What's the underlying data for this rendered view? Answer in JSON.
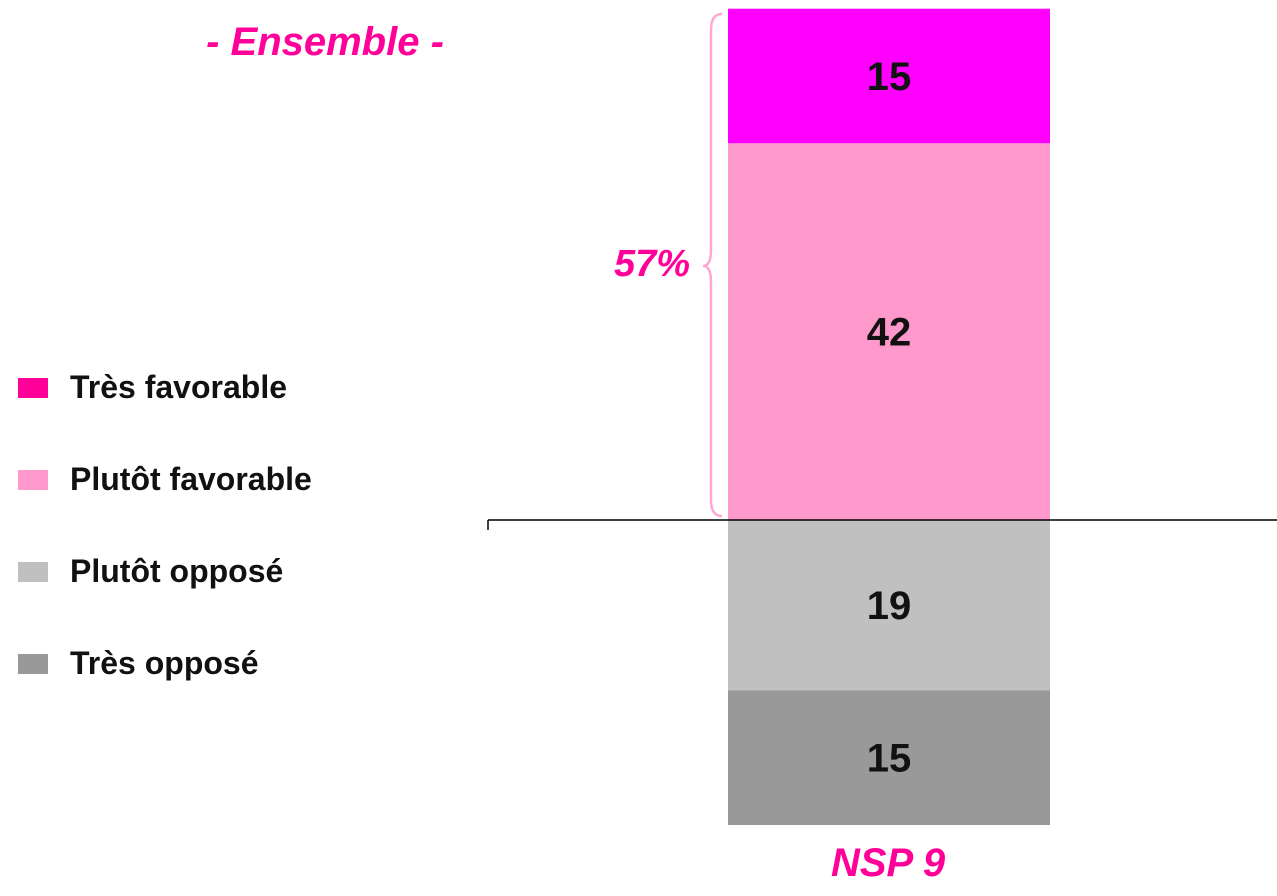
{
  "chart_data": {
    "type": "bar",
    "stacked": true,
    "title": "- Ensemble -",
    "categories": [
      "Ensemble"
    ],
    "series": [
      {
        "name": "Très opposé",
        "values": [
          15
        ],
        "color": "#999999"
      },
      {
        "name": "Plutôt opposé",
        "values": [
          19
        ],
        "color": "#c0c0c0"
      },
      {
        "name": "Plutôt favorable",
        "values": [
          42
        ],
        "color": "#ff99cc"
      },
      {
        "name": "Très favorable",
        "values": [
          15
        ],
        "color": "#ff00ff"
      }
    ],
    "baseline_split": "between opposed (below) and favorable (above)",
    "annotation_favorable": "57%",
    "footer_note": "NSP 9",
    "legend_position": "left"
  },
  "legend": [
    {
      "label": "Très favorable",
      "color": "#ff0099"
    },
    {
      "label": "Plutôt favorable",
      "color": "#ff99cc"
    },
    {
      "label": "Plutôt opposé",
      "color": "#c0c0c0"
    },
    {
      "label": "Très opposé",
      "color": "#999999"
    }
  ],
  "accent_color": "#ff0099"
}
